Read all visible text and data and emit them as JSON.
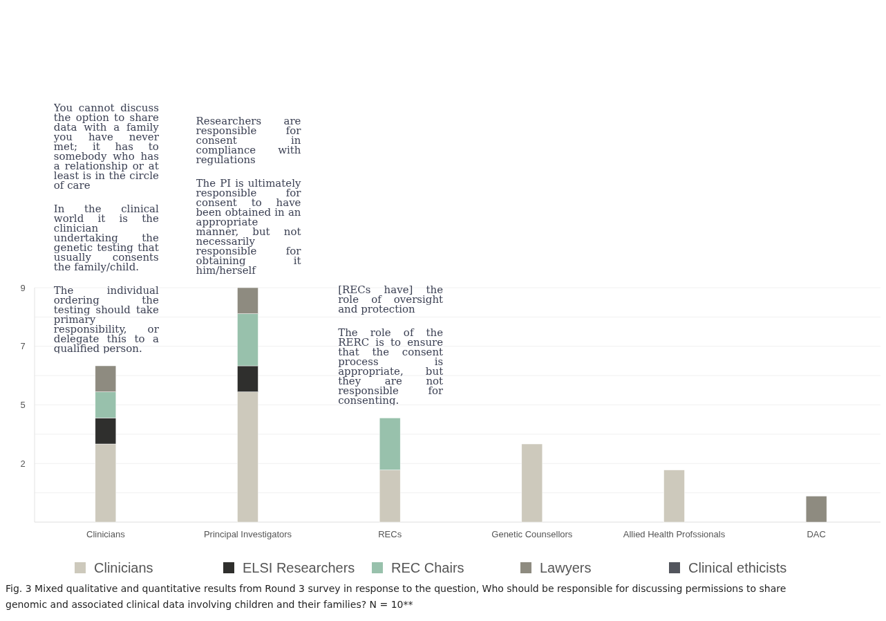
{
  "chart_data": {
    "type": "bar",
    "stacked": true,
    "categories": [
      "Clinicians",
      "Principal Investigators",
      "RECs",
      "Genetic Counsellors",
      "Allied Health Profssionals",
      "DAC"
    ],
    "series": [
      {
        "name": "Clinicians",
        "color": "#cdc9bc",
        "values": [
          3,
          5,
          2,
          3,
          2,
          0
        ]
      },
      {
        "name": "ELSI Researchers",
        "color": "#2f2f2d",
        "values": [
          1,
          1,
          0,
          0,
          0,
          0
        ]
      },
      {
        "name": "REC Chairs",
        "color": "#98c1ac",
        "values": [
          1,
          2,
          2,
          0,
          0,
          0
        ]
      },
      {
        "name": "Lawyers",
        "color": "#8e8b80",
        "values": [
          1,
          1,
          0,
          0,
          0,
          1
        ]
      },
      {
        "name": "Clinical ethicists",
        "color": "#52555d",
        "values": [
          0,
          0,
          0,
          0,
          0,
          0
        ]
      }
    ],
    "ylim": [
      0,
      9
    ],
    "yticks": [
      {
        "value": 1.125,
        "label": null
      },
      {
        "value": 2.25,
        "label": "2"
      },
      {
        "value": 3.375,
        "label": null
      },
      {
        "value": 4.5,
        "label": "5"
      },
      {
        "value": 5.625,
        "label": null
      },
      {
        "value": 6.75,
        "label": "7"
      },
      {
        "value": 7.875,
        "label": null
      },
      9
    ],
    "grid": true,
    "legend": "bottom",
    "annotations": [
      "You cannot discuss the option to share data with a family you have never met; it has to somebody who has a relationship or at least is in the circle of care",
      "In the clinical world it is the clinician undertaking the genetic testing that usually consents the family/child.",
      "The individual ordering the testing should take primary responsibility, or delegate this to a qualified person.",
      "Researchers are responsible for consent in compliance with regulations",
      "The PI is ultimately responsible for consent to have been obtained in an appropriate manner, but not necessarily responsible for obtaining it him/herself",
      "[RECs have] the role of oversight and protection",
      "The role of the RERC is to ensure that the consent process is appropriate, but they are not responsible for consenting.",
      "Fig. 3 Mixed qualitative and quantitative results from Round 3 survey in response to the question, Who should be responsible for discussing permissions to share genomic and associated clinical data involving children and their families? N = 10**"
    ]
  }
}
